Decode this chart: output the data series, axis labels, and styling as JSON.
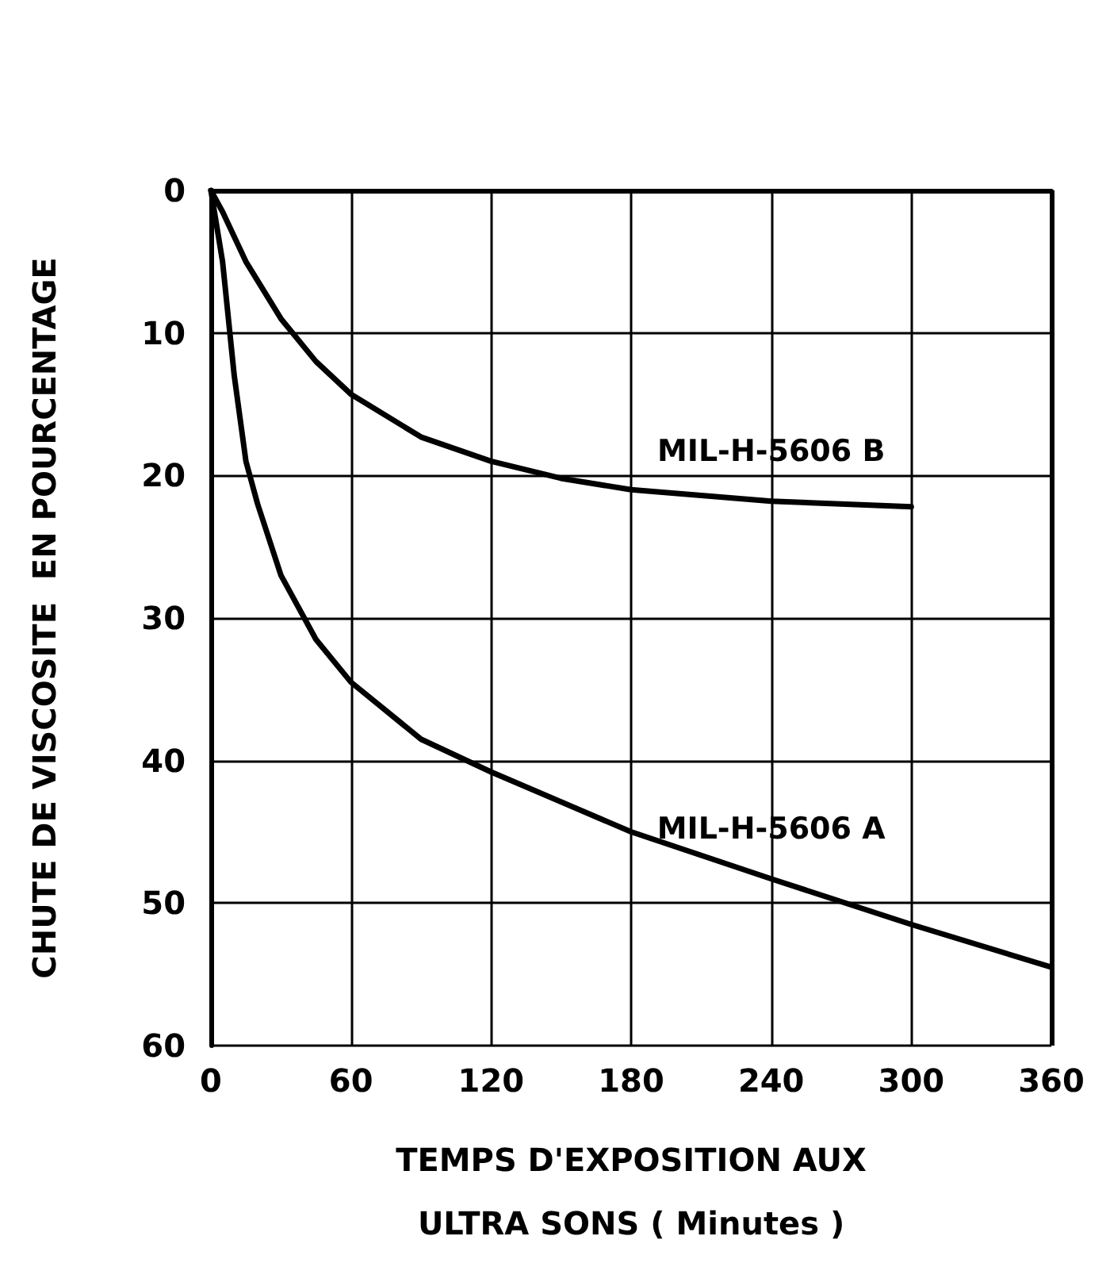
{
  "chart_data": {
    "type": "line",
    "xlabel": "TEMPS D'EXPOSITION AUX ULTRA SONS ( Minutes )",
    "ylabel": "CHUTE DE VISCOSITE  EN POURCENTAGE",
    "xlim": [
      0,
      360
    ],
    "xticks": [
      0,
      60,
      120,
      180,
      240,
      300,
      360
    ],
    "ylim": [
      60,
      0
    ],
    "yticks": [
      0,
      10,
      20,
      30,
      40,
      50,
      60
    ],
    "grid": true,
    "legend": false,
    "marker": "none",
    "line_style": "solid",
    "series": [
      {
        "name": "MIL-H-5606 B",
        "color": "#000000",
        "x": [
          0,
          5,
          15,
          30,
          45,
          60,
          90,
          120,
          150,
          180,
          240,
          300
        ],
        "values": [
          0,
          1.5,
          5,
          9,
          12,
          14.3,
          17.3,
          19,
          20.2,
          21,
          21.8,
          22.2
        ]
      },
      {
        "name": "MIL-H-5606 A",
        "color": "#000000",
        "x": [
          0,
          5,
          10,
          15,
          20,
          30,
          45,
          60,
          90,
          120,
          180,
          240,
          300,
          360
        ],
        "values": [
          0,
          5,
          13,
          19,
          22,
          27,
          31.5,
          34.5,
          38.5,
          40.8,
          45,
          48.3,
          51.5,
          54.5
        ]
      }
    ]
  }
}
